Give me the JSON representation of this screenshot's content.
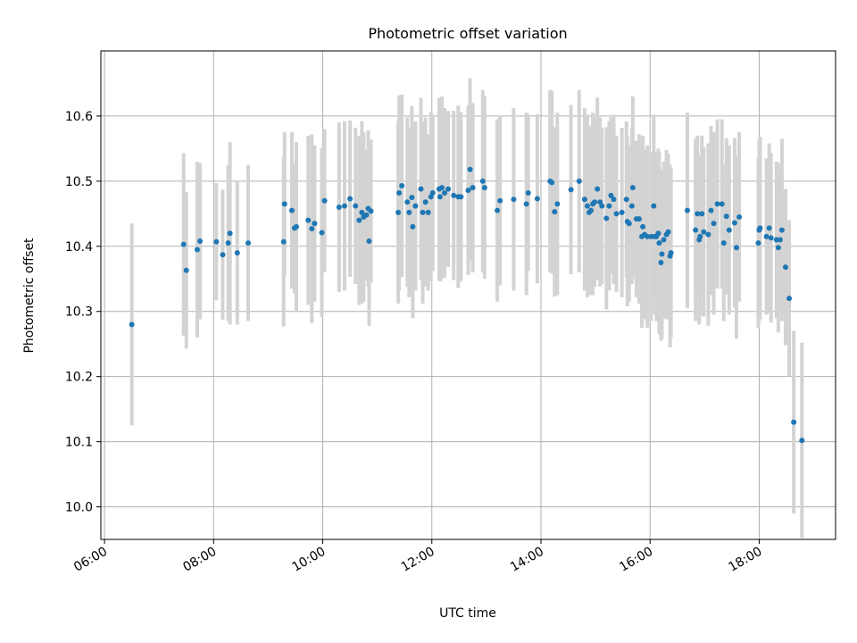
{
  "chart_data": {
    "type": "scatter",
    "title": "Photometric offset variation",
    "xlabel": "UTC time",
    "ylabel": "Photometric offset",
    "x_unit": "hours UTC",
    "xlim": [
      "05:56",
      "19:24"
    ],
    "ylim": [
      9.95,
      10.7
    ],
    "xticks": [
      "06:00",
      "08:00",
      "10:00",
      "12:00",
      "14:00",
      "16:00",
      "18:00"
    ],
    "yticks": [
      "10.0",
      "10.1",
      "10.2",
      "10.3",
      "10.4",
      "10.5",
      "10.6"
    ],
    "grid": true,
    "errorbar_color": "#d3d3d3",
    "marker_color": "#1f77b4",
    "points": [
      [
        "06:30",
        10.28,
        0.155
      ],
      [
        "07:27",
        10.403,
        0.14
      ],
      [
        "07:30",
        10.363,
        0.12
      ],
      [
        "07:42",
        10.395,
        0.135
      ],
      [
        "07:45",
        10.408,
        0.12
      ],
      [
        "08:03",
        10.407,
        0.09
      ],
      [
        "08:10",
        10.387,
        0.1
      ],
      [
        "08:16",
        10.405,
        0.12
      ],
      [
        "08:18",
        10.42,
        0.14
      ],
      [
        "08:26",
        10.39,
        0.11
      ],
      [
        "08:38",
        10.405,
        0.12
      ],
      [
        "09:17",
        10.407,
        0.13
      ],
      [
        "09:18",
        10.465,
        0.11
      ],
      [
        "09:26",
        10.455,
        0.12
      ],
      [
        "09:29",
        10.428,
        0.1
      ],
      [
        "09:31",
        10.43,
        0.13
      ],
      [
        "09:44",
        10.44,
        0.13
      ],
      [
        "09:48",
        10.427,
        0.145
      ],
      [
        "09:51",
        10.435,
        0.12
      ],
      [
        "09:59",
        10.421,
        0.13
      ],
      [
        "10:02",
        10.47,
        0.11
      ],
      [
        "10:18",
        10.46,
        0.13
      ],
      [
        "10:24",
        10.462,
        0.13
      ],
      [
        "10:30",
        10.473,
        0.12
      ],
      [
        "10:36",
        10.462,
        0.12
      ],
      [
        "10:40",
        10.44,
        0.13
      ],
      [
        "10:43",
        10.452,
        0.14
      ],
      [
        "10:45",
        10.445,
        0.13
      ],
      [
        "10:48",
        10.448,
        0.1
      ],
      [
        "10:50",
        10.458,
        0.12
      ],
      [
        "10:51",
        10.408,
        0.13
      ],
      [
        "10:53",
        10.454,
        0.11
      ],
      [
        "11:23",
        10.452,
        0.14
      ],
      [
        "11:24",
        10.482,
        0.15
      ],
      [
        "11:27",
        10.493,
        0.14
      ],
      [
        "11:33",
        10.468,
        0.13
      ],
      [
        "11:35",
        10.452,
        0.13
      ],
      [
        "11:38",
        10.475,
        0.14
      ],
      [
        "11:39",
        10.43,
        0.14
      ],
      [
        "11:42",
        10.462,
        0.13
      ],
      [
        "11:48",
        10.488,
        0.14
      ],
      [
        "11:50",
        10.452,
        0.14
      ],
      [
        "11:53",
        10.468,
        0.13
      ],
      [
        "11:56",
        10.452,
        0.12
      ],
      [
        "11:59",
        10.476,
        0.13
      ],
      [
        "12:01",
        10.482,
        0.12
      ],
      [
        "12:08",
        10.488,
        0.14
      ],
      [
        "12:09",
        10.476,
        0.13
      ],
      [
        "12:11",
        10.49,
        0.14
      ],
      [
        "12:14",
        10.482,
        0.13
      ],
      [
        "12:18",
        10.488,
        0.12
      ],
      [
        "12:24",
        10.478,
        0.13
      ],
      [
        "12:29",
        10.476,
        0.14
      ],
      [
        "12:32",
        10.476,
        0.13
      ],
      [
        "12:40",
        10.486,
        0.13
      ],
      [
        "12:42",
        10.518,
        0.14
      ],
      [
        "12:45",
        10.49,
        0.13
      ],
      [
        "12:56",
        10.5,
        0.14
      ],
      [
        "12:58",
        10.49,
        0.14
      ],
      [
        "13:12",
        10.455,
        0.14
      ],
      [
        "13:15",
        10.47,
        0.13
      ],
      [
        "13:30",
        10.472,
        0.14
      ],
      [
        "13:44",
        10.465,
        0.14
      ],
      [
        "13:46",
        10.482,
        0.12
      ],
      [
        "13:56",
        10.473,
        0.13
      ],
      [
        "14:10",
        10.5,
        0.14
      ],
      [
        "14:12",
        10.498,
        0.14
      ],
      [
        "14:15",
        10.453,
        0.13
      ],
      [
        "14:18",
        10.465,
        0.14
      ],
      [
        "14:33",
        10.487,
        0.13
      ],
      [
        "14:42",
        10.5,
        0.14
      ],
      [
        "14:48",
        10.472,
        0.14
      ],
      [
        "14:51",
        10.462,
        0.14
      ],
      [
        "14:53",
        10.452,
        0.12
      ],
      [
        "14:55",
        10.455,
        0.13
      ],
      [
        "14:57",
        10.465,
        0.14
      ],
      [
        "14:59",
        10.468,
        0.13
      ],
      [
        "15:02",
        10.488,
        0.14
      ],
      [
        "15:05",
        10.468,
        0.13
      ],
      [
        "15:07",
        10.462,
        0.12
      ],
      [
        "15:12",
        10.443,
        0.14
      ],
      [
        "15:15",
        10.462,
        0.13
      ],
      [
        "15:17",
        10.478,
        0.12
      ],
      [
        "15:20",
        10.472,
        0.13
      ],
      [
        "15:23",
        10.45,
        0.12
      ],
      [
        "15:29",
        10.452,
        0.13
      ],
      [
        "15:34",
        10.472,
        0.12
      ],
      [
        "15:35",
        10.438,
        0.13
      ],
      [
        "15:37",
        10.435,
        0.12
      ],
      [
        "15:40",
        10.462,
        0.12
      ],
      [
        "15:41",
        10.49,
        0.14
      ],
      [
        "15:45",
        10.442,
        0.12
      ],
      [
        "15:48",
        10.442,
        0.13
      ],
      [
        "15:51",
        10.415,
        0.14
      ],
      [
        "15:52",
        10.43,
        0.14
      ],
      [
        "15:54",
        10.418,
        0.13
      ],
      [
        "15:57",
        10.415,
        0.14
      ],
      [
        "16:01",
        10.415,
        0.13
      ],
      [
        "16:04",
        10.462,
        0.14
      ],
      [
        "16:05",
        10.415,
        0.12
      ],
      [
        "16:07",
        10.415,
        0.13
      ],
      [
        "16:09",
        10.42,
        0.13
      ],
      [
        "16:10",
        10.405,
        0.14
      ],
      [
        "16:12",
        10.375,
        0.12
      ],
      [
        "16:13",
        10.388,
        0.13
      ],
      [
        "16:15",
        10.41,
        0.12
      ],
      [
        "16:18",
        10.418,
        0.13
      ],
      [
        "16:20",
        10.422,
        0.12
      ],
      [
        "16:22",
        10.385,
        0.14
      ],
      [
        "16:23",
        10.39,
        0.13
      ],
      [
        "16:41",
        10.455,
        0.15
      ],
      [
        "16:50",
        10.425,
        0.14
      ],
      [
        "16:52",
        10.45,
        0.12
      ],
      [
        "16:54",
        10.41,
        0.13
      ],
      [
        "16:55",
        10.415,
        0.12
      ],
      [
        "16:57",
        10.45,
        0.12
      ],
      [
        "16:59",
        10.422,
        0.13
      ],
      [
        "17:04",
        10.418,
        0.14
      ],
      [
        "17:07",
        10.455,
        0.13
      ],
      [
        "17:10",
        10.435,
        0.14
      ],
      [
        "17:14",
        10.465,
        0.13
      ],
      [
        "17:19",
        10.465,
        0.13
      ],
      [
        "17:21",
        10.405,
        0.12
      ],
      [
        "17:24",
        10.446,
        0.12
      ],
      [
        "17:27",
        10.425,
        0.13
      ],
      [
        "17:33",
        10.436,
        0.13
      ],
      [
        "17:35",
        10.398,
        0.14
      ],
      [
        "17:38",
        10.445,
        0.13
      ],
      [
        "17:59",
        10.405,
        0.13
      ],
      [
        "18:00",
        10.425,
        0.14
      ],
      [
        "18:01",
        10.428,
        0.14
      ],
      [
        "18:08",
        10.415,
        0.12
      ],
      [
        "18:11",
        10.428,
        0.13
      ],
      [
        "18:13",
        10.413,
        0.13
      ],
      [
        "18:19",
        10.41,
        0.12
      ],
      [
        "18:21",
        10.398,
        0.13
      ],
      [
        "18:23",
        10.41,
        0.11
      ],
      [
        "18:25",
        10.425,
        0.14
      ],
      [
        "18:29",
        10.368,
        0.12
      ],
      [
        "18:33",
        10.32,
        0.12
      ],
      [
        "18:38",
        10.13,
        0.14
      ],
      [
        "18:47",
        10.102,
        0.15
      ]
    ]
  }
}
